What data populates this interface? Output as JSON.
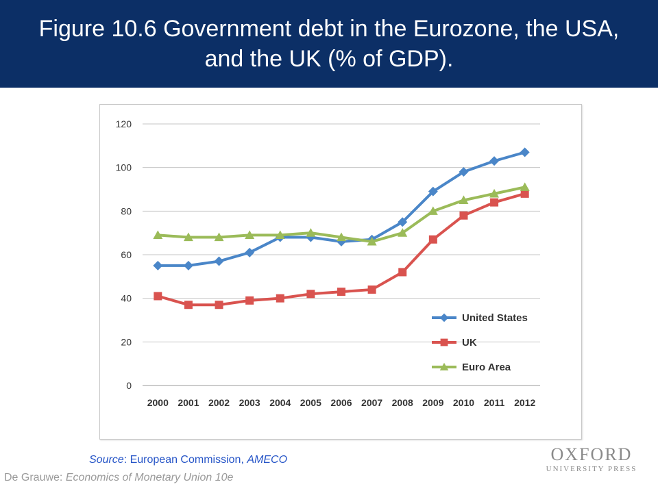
{
  "header": {
    "title": "Figure 10.6 Government debt in the Eurozone, the USA, and the UK (% of GDP)."
  },
  "source": {
    "prefix": "Source",
    "text": ": European Commission, ",
    "dataset": "AMECO"
  },
  "footer": {
    "author": "De Grauwe: ",
    "book": "Economics of Monetary Union 10e"
  },
  "publisher": {
    "line1": "OXFORD",
    "line2": "UNIVERSITY PRESS"
  },
  "colors": {
    "header_bg": "#0c2f66",
    "us": "#4a86c8",
    "uk": "#d9534f",
    "euro": "#9bbb59",
    "source_text": "#2554c7"
  },
  "chart_data": {
    "type": "line",
    "title": "",
    "xlabel": "",
    "ylabel": "",
    "ylim": [
      0,
      120
    ],
    "yticks": [
      0,
      20,
      40,
      60,
      80,
      100,
      120
    ],
    "grid": true,
    "legend_position": "lower-right",
    "categories": [
      "2000",
      "2001",
      "2002",
      "2003",
      "2004",
      "2005",
      "2006",
      "2007",
      "2008",
      "2009",
      "2010",
      "2011",
      "2012"
    ],
    "series": [
      {
        "name": "United States",
        "marker": "diamond",
        "color": "#4a86c8",
        "values": [
          55,
          55,
          57,
          61,
          68,
          68,
          66,
          67,
          75,
          89,
          98,
          103,
          107
        ]
      },
      {
        "name": "UK",
        "marker": "square",
        "color": "#d9534f",
        "values": [
          41,
          37,
          37,
          39,
          40,
          42,
          43,
          44,
          52,
          67,
          78,
          84,
          88
        ]
      },
      {
        "name": "Euro Area",
        "marker": "triangle",
        "color": "#9bbb59",
        "values": [
          69,
          68,
          68,
          69,
          69,
          70,
          68,
          66,
          70,
          80,
          85,
          88,
          91
        ]
      }
    ]
  }
}
